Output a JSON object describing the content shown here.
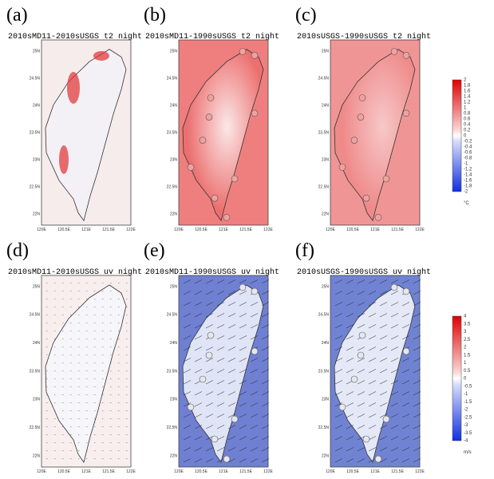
{
  "panels": [
    {
      "label": "(a)",
      "title": "2010sMD11-2010sUSGS t2 night"
    },
    {
      "label": "(b)",
      "title": "2010sMD11-1990sUSGS t2 night"
    },
    {
      "label": "(c)",
      "title": "2010sUSGS-1990sUSGS t2 night"
    },
    {
      "label": "(d)",
      "title": "2010sMD11-2010sUSGS uv night"
    },
    {
      "label": "(e)",
      "title": "2010sMD11-1990sUSGS uv night"
    },
    {
      "label": "(f)",
      "title": "2010sUSGS-1990sUSGS uv night"
    }
  ],
  "axes": {
    "yticks": [
      "25N",
      "24.5N",
      "24N",
      "23.5N",
      "23N",
      "22.5N",
      "22N"
    ],
    "xticks": [
      "120E",
      "120.5E",
      "121E",
      "121.5E",
      "122E"
    ]
  },
  "colorbars": [
    {
      "ticks": [
        "2",
        "1.8",
        "1.6",
        "1.4",
        "1.2",
        "1",
        "0.8",
        "0.6",
        "0.4",
        "0.2",
        "0",
        "-0.2",
        "-0.4",
        "-0.6",
        "-0.8",
        "-1",
        "-1.2",
        "-1.4",
        "-1.6",
        "-1.8",
        "-2"
      ],
      "unit": "°C"
    },
    {
      "ticks": [
        "4",
        "3.5",
        "3",
        "2.5",
        "2",
        "1.5",
        "1",
        "0.5",
        "0",
        "-0.5",
        "-1",
        "-1.5",
        "-2",
        "-2.5",
        "-3",
        "-3.5",
        "-4"
      ],
      "unit": "m/s"
    }
  ]
}
